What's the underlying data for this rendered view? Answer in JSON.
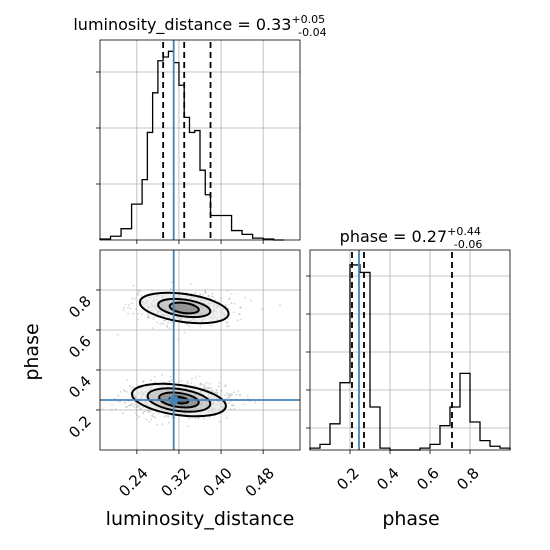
{
  "chart_data": [
    {
      "type": "histogram",
      "panel": "luminosity_distance_1d",
      "title": {
        "param": "luminosity_distance",
        "value": "0.33",
        "plus": "+0.05",
        "minus": "-0.04"
      },
      "x_range": [
        0.17,
        0.55
      ],
      "bin_edges": [
        0.17,
        0.19,
        0.21,
        0.23,
        0.25,
        0.26,
        0.27,
        0.28,
        0.29,
        0.3,
        0.31,
        0.32,
        0.33,
        0.34,
        0.35,
        0.36,
        0.37,
        0.38,
        0.4,
        0.42,
        0.44,
        0.46,
        0.48,
        0.5,
        0.52
      ],
      "counts": [
        0.005,
        0.02,
        0.06,
        0.19,
        0.32,
        0.57,
        0.78,
        0.95,
        0.97,
        1.0,
        0.94,
        0.82,
        0.65,
        0.57,
        0.58,
        0.37,
        0.24,
        0.13,
        0.13,
        0.05,
        0.03,
        0.01,
        0.005,
        0.0
      ],
      "quantiles": [
        0.29,
        0.33,
        0.38
      ],
      "truth": 0.31
    },
    {
      "type": "scatter_contour",
      "panel": "phase_vs_luminosity_distance",
      "x_range": [
        0.17,
        0.55
      ],
      "y_range": [
        0.0,
        1.0
      ],
      "x_ticks": [
        "0.24",
        "0.32",
        "0.40",
        "0.48"
      ],
      "x_tick_values": [
        0.24,
        0.32,
        0.4,
        0.48
      ],
      "y_ticks": [
        "0.2",
        "0.4",
        "0.6",
        "0.8"
      ],
      "y_tick_values": [
        0.2,
        0.4,
        0.6,
        0.8
      ],
      "xlabel": "luminosity_distance",
      "ylabel": "phase",
      "modes": [
        {
          "center": [
            0.33,
            0.71
          ],
          "levels": [
            [
              0.085,
              0.07
            ],
            [
              0.05,
              0.042
            ],
            [
              0.028,
              0.025
            ]
          ]
        },
        {
          "center": [
            0.32,
            0.25
          ],
          "levels": [
            [
              0.09,
              0.075
            ],
            [
              0.06,
              0.055
            ],
            [
              0.038,
              0.035
            ],
            [
              0.018,
              0.016
            ]
          ]
        }
      ],
      "truth": [
        0.31,
        0.25
      ]
    },
    {
      "type": "histogram",
      "panel": "phase_1d",
      "title": {
        "param": "phase",
        "value": "0.27",
        "plus": "+0.44",
        "minus": "-0.06"
      },
      "x_range": [
        0.0,
        1.0
      ],
      "x_ticks": [
        "0.2",
        "0.4",
        "0.6",
        "0.8"
      ],
      "x_tick_values": [
        0.2,
        0.4,
        0.6,
        0.8
      ],
      "xlabel": "phase",
      "bin_edges": [
        0.0,
        0.05,
        0.1,
        0.15,
        0.2,
        0.25,
        0.3,
        0.35,
        0.4,
        0.45,
        0.5,
        0.55,
        0.6,
        0.65,
        0.7,
        0.75,
        0.8,
        0.85,
        0.9,
        0.95,
        1.0
      ],
      "counts": [
        0.01,
        0.03,
        0.14,
        0.36,
        0.99,
        0.95,
        0.23,
        0.01,
        0.0,
        0.0,
        0.0,
        0.01,
        0.03,
        0.13,
        0.23,
        0.41,
        0.15,
        0.05,
        0.02,
        0.01
      ],
      "quantiles": [
        0.21,
        0.27,
        0.71
      ],
      "truth": 0.245
    }
  ]
}
